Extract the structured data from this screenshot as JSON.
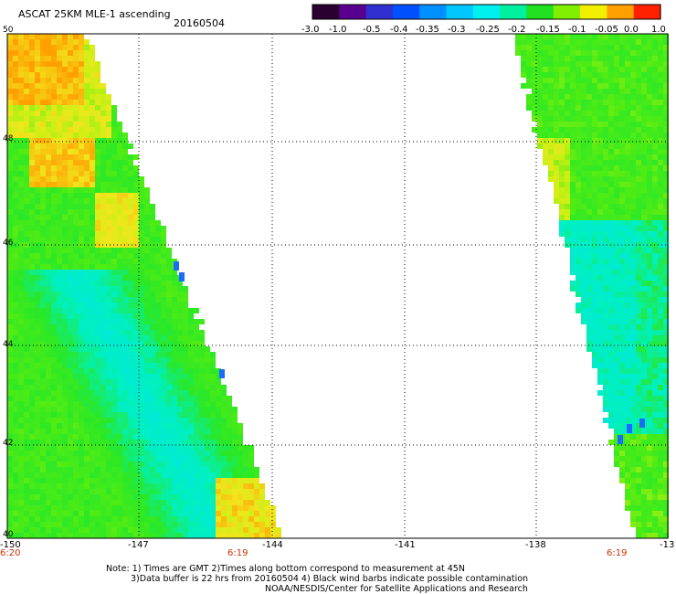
{
  "header": {
    "title": "ASCAT 25KM MLE-1 ascending",
    "date": "20160504"
  },
  "colorbar": {
    "tick_labels": [
      "-3.0",
      "-1.0",
      "-0.5",
      "-0.4",
      "-0.35",
      "-0.3",
      "-0.25",
      "-0.2",
      "-0.15",
      "-0.1",
      "-0.05",
      "0.0",
      "1.0"
    ],
    "colors": [
      "#2a0030",
      "#5a0090",
      "#3030d0",
      "#0050ff",
      "#0090ff",
      "#00c8ff",
      "#00f0f0",
      "#00f0a0",
      "#20e020",
      "#80f000",
      "#f0f000",
      "#ffa000",
      "#ff2000"
    ]
  },
  "map": {
    "lat_labels": [
      "50",
      "48",
      "46",
      "44",
      "42",
      "40"
    ],
    "lon_labels": [
      "-150",
      "-147",
      "-144",
      "-141",
      "-138",
      "-13"
    ],
    "time_labels": [
      "6:20",
      "6:19",
      "6:19"
    ],
    "swaths": [
      {
        "name": "west-swath",
        "dominant_colors": [
          "#20e820",
          "#00f0e0",
          "#e8f020",
          "#ffa000"
        ]
      },
      {
        "name": "east-swath",
        "dominant_colors": [
          "#20e820",
          "#00f0e0"
        ]
      }
    ]
  },
  "notes": {
    "line1": "Note: 1) Times are GMT 2)Times along bottom correspond to measurement at 45N",
    "line2": "3)Data buffer is 22 hrs from 20160504 4) Black wind barbs indicate possible contamination",
    "line3": "NOAA/NESDIS/Center for Satellite Applications and Research"
  }
}
